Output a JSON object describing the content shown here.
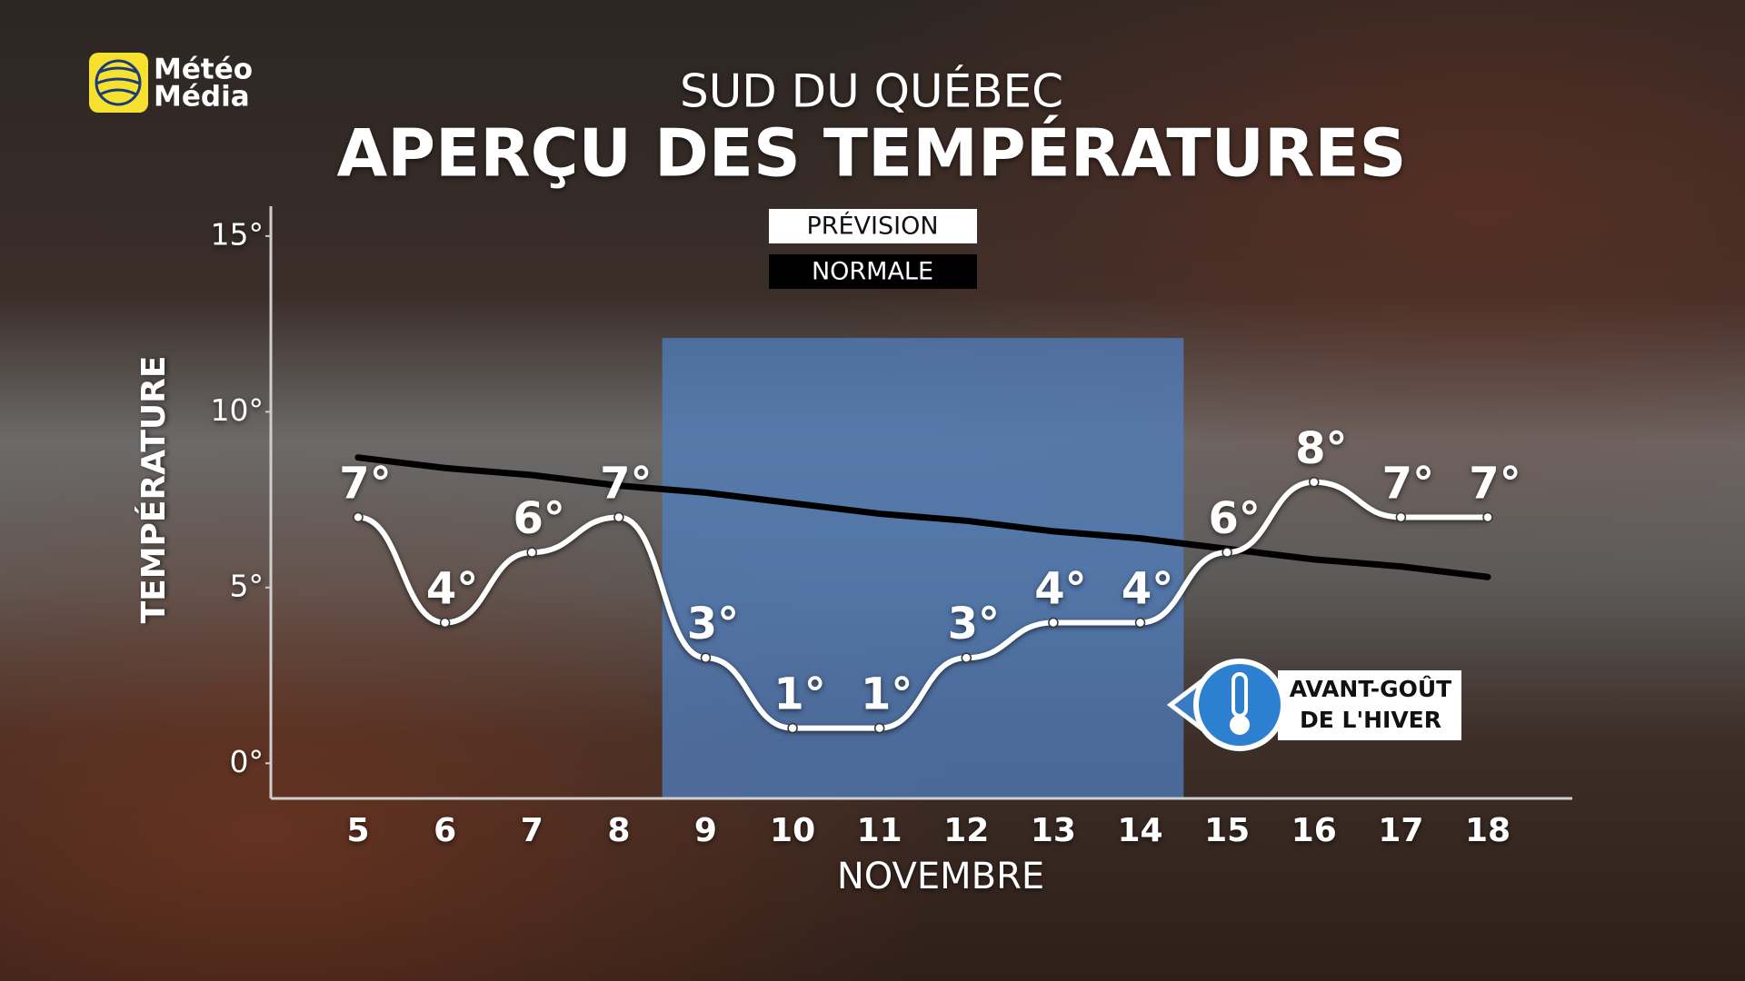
{
  "chart_data": {
    "type": "line",
    "brand": [
      "Météo",
      "Média"
    ],
    "subtitle": "SUD DU QUÉBEC",
    "title": "APERÇU DES TEMPÉRATURES",
    "y_label": "TEMPÉRATURE",
    "x_label": "NOVEMBRE",
    "categories": [
      "5",
      "6",
      "7",
      "8",
      "9",
      "10",
      "11",
      "12",
      "13",
      "14",
      "15",
      "16",
      "17",
      "18"
    ],
    "series": [
      {
        "name": "PRÉVISION",
        "color": "#ffffff",
        "values": [
          7,
          4,
          6,
          7,
          3,
          1,
          1,
          3,
          4,
          4,
          6,
          8,
          7,
          7
        ],
        "value_labels": [
          "7°",
          "4°",
          "6°",
          "7°",
          "3°",
          "1°",
          "1°",
          "3°",
          "4°",
          "4°",
          "6°",
          "8°",
          "7°",
          "7°"
        ]
      },
      {
        "name": "NORMALE",
        "color": "#000000",
        "values": [
          8.7,
          8.4,
          8.2,
          7.9,
          7.7,
          7.4,
          7.1,
          6.9,
          6.6,
          6.4,
          6.1,
          5.8,
          5.6,
          5.3
        ]
      }
    ],
    "ylim": [
      -1,
      15.85
    ],
    "yticks": [
      {
        "value": 0,
        "label": "0°"
      },
      {
        "value": 5,
        "label": "5°"
      },
      {
        "value": 10,
        "label": "10°"
      },
      {
        "value": 15,
        "label": "15°"
      }
    ],
    "highlight": {
      "from": "9",
      "to": "14",
      "top": 12.1,
      "color": "#4f7fc0"
    },
    "annotation": [
      "AVANT-GOÛT",
      "DE L'HIVER"
    ]
  }
}
